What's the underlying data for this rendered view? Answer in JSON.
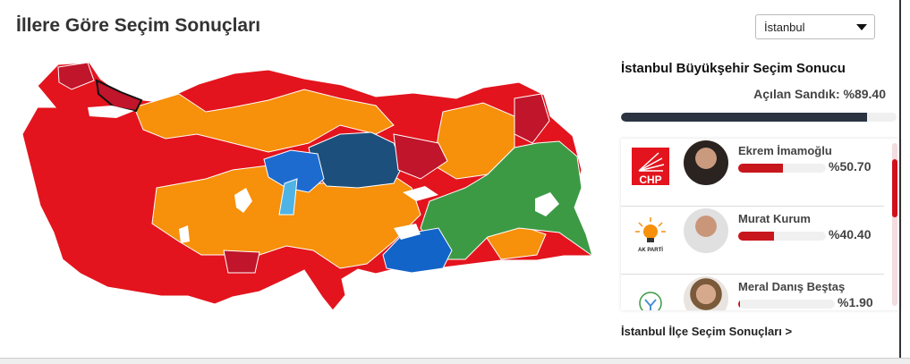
{
  "page_title": "İllere Göre Seçim Sonuçları",
  "province_select": {
    "value": "İstanbul"
  },
  "result": {
    "title": "İstanbul Büyükşehir Seçim Sonucu",
    "opened_ballots_label": "Açılan Sandık: %89.40",
    "opened_ballots_percent": 89.4,
    "candidates": [
      {
        "name": "Ekrem İmamoğlu",
        "party": "CHP",
        "percent_label": "%50.70",
        "percent": 50.7
      },
      {
        "name": "Murat Kurum",
        "party": "AK PARTİ",
        "percent_label": "%40.40",
        "percent": 40.4
      },
      {
        "name": "Meral Danış Beştaş",
        "party": "DEM",
        "percent_label": "%1.90",
        "percent": 1.9
      }
    ]
  },
  "district_link": "İstanbul İlçe Seçim Sonuçları >",
  "colors": {
    "chp": "#e3141d",
    "chp_dark": "#c0152a",
    "akp": "#f7900a",
    "dem": "#3c9a45",
    "mhp": "#1d4f7c",
    "iyi": "#1e6bd0",
    "yrp": "#4fb3e6",
    "bar_fill": "#c8161d",
    "progress": "#2b3440"
  }
}
